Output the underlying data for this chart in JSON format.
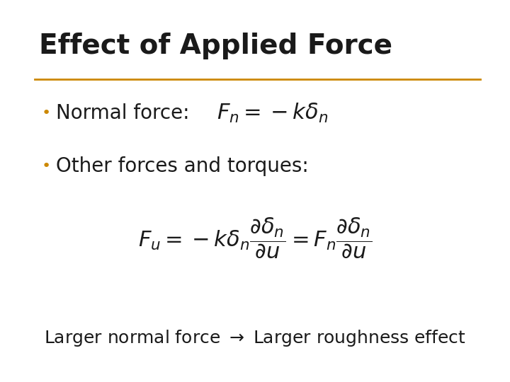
{
  "title": "Effect of Applied Force",
  "title_fontsize": 28,
  "title_color": "#1a1a1a",
  "bullet1_label": "Normal force:",
  "bullet2_label": "Other forces and torques:",
  "eq1": "$F_n = -k\\delta_n$",
  "eq2": "$F_u = -k\\delta_n \\dfrac{\\partial\\delta_n}{\\partial u} = F_n \\dfrac{\\partial\\delta_n}{\\partial u}$",
  "footer": "Larger normal force $\\rightarrow$ Larger roughness effect",
  "separator_color": "#CC8800",
  "bg_color": "#ffffff",
  "text_color": "#1a1a1a",
  "eq_color": "#1a1a1a",
  "bullet_dot_color": "#CC8800",
  "text_fontsize": 20,
  "eq1_fontsize": 22,
  "eq2_fontsize": 22,
  "footer_fontsize": 18
}
